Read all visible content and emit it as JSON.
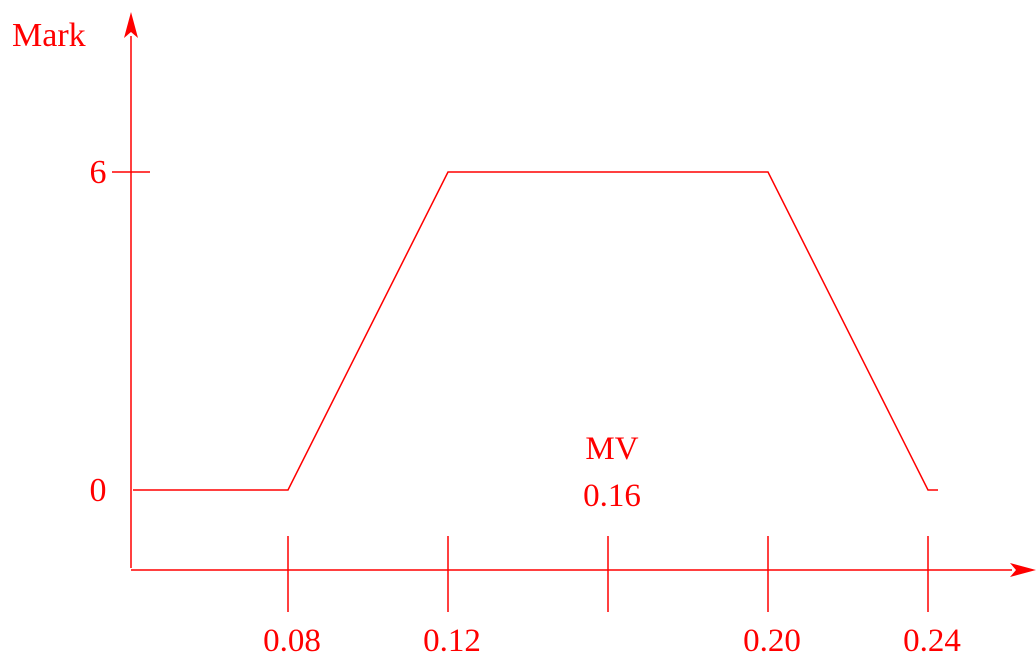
{
  "chart_data": {
    "type": "line",
    "ylabel": "Mark",
    "series": [
      {
        "x": [
          0.08,
          0.12,
          0.2,
          0.24
        ],
        "y": [
          0,
          6,
          6,
          0
        ]
      }
    ],
    "flat_left": {
      "y": 0
    },
    "flat_right": {
      "y": 0
    },
    "x_ticks": [
      "0.08",
      "0.12",
      "0.20",
      "0.24"
    ],
    "x_tick_values": [
      0.08,
      0.12,
      0.2,
      0.24
    ],
    "y_ticks": [
      "0",
      "6"
    ],
    "y_tick_values": [
      0,
      6
    ],
    "annotation": {
      "label": "MV",
      "value_label": "0.16",
      "x": 0.16
    },
    "color": "#ff0000"
  }
}
